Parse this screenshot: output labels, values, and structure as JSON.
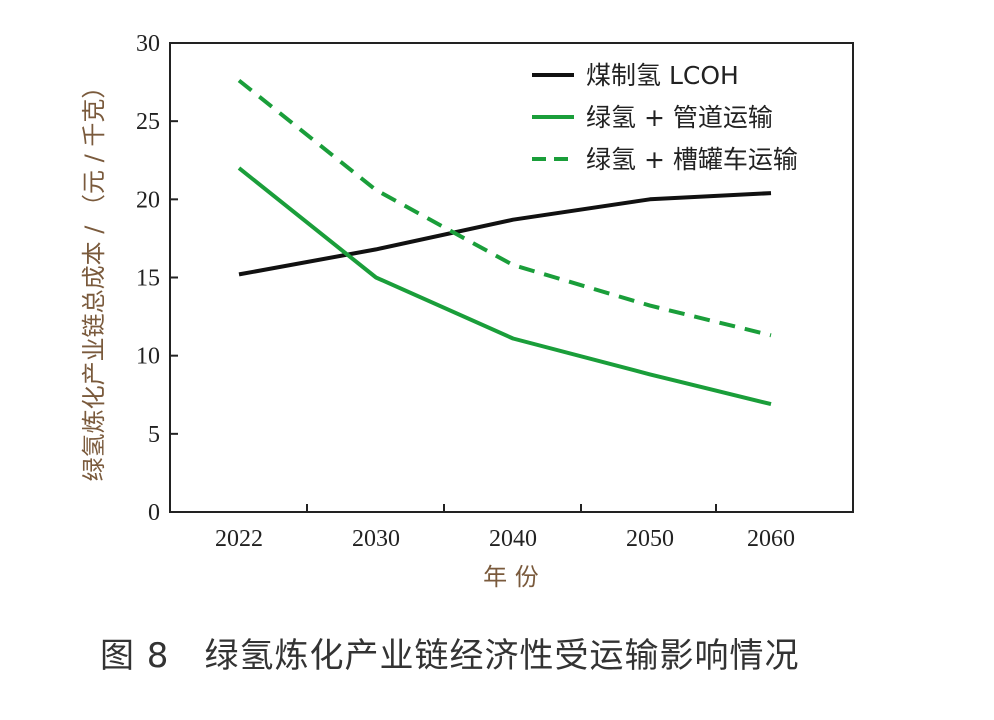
{
  "caption": "图 8　绿氢炼化产业链经济性受运输影响情况",
  "chart_data": {
    "type": "line",
    "x": [
      2022,
      2030,
      2040,
      2050,
      2060
    ],
    "xticks": [
      "2022",
      "2030",
      "2040",
      "2050",
      "2060"
    ],
    "xlabel": "年 份",
    "ylabel": "绿氢炼化产业链总成本 / （元 / 千克）",
    "ylim": [
      0,
      30
    ],
    "yticks": [
      "0",
      "5",
      "10",
      "15",
      "20",
      "25",
      "30"
    ],
    "grid": false,
    "legend_position": "top-right",
    "series": [
      {
        "name": "煤制氢 LCOH",
        "values": [
          15.2,
          16.8,
          18.7,
          20.0,
          20.4
        ],
        "color": "#111111",
        "dash": "solid"
      },
      {
        "name": "绿氢 + 管道运输",
        "values": [
          22.0,
          15.0,
          11.1,
          8.8,
          6.9
        ],
        "color": "#1a9e3a",
        "dash": "solid"
      },
      {
        "name": "绿氢 + 槽罐车运输",
        "values": [
          27.6,
          20.6,
          15.8,
          13.2,
          11.3
        ],
        "color": "#1a9e3a",
        "dash": "dashed"
      }
    ]
  }
}
